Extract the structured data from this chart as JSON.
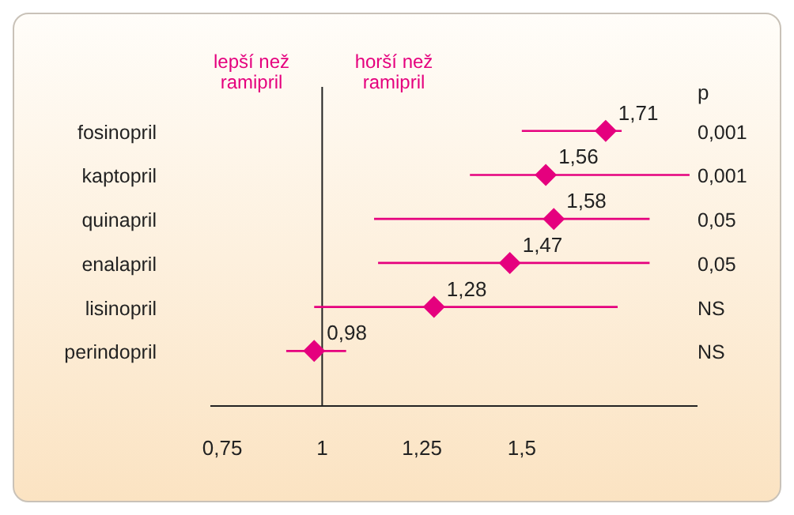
{
  "chart_data": {
    "type": "scatter",
    "categories": [
      "fosinopril",
      "kaptopril",
      "quinapril",
      "enalapril",
      "lisinopril",
      "perindopril"
    ],
    "values": [
      1.71,
      1.56,
      1.58,
      1.47,
      1.28,
      0.98
    ],
    "value_labels": [
      "1,71",
      "1,56",
      "1,58",
      "1,47",
      "1,28",
      "0,98"
    ],
    "errors": [
      [
        1.5,
        1.75
      ],
      [
        1.37,
        1.92
      ],
      [
        1.13,
        1.82
      ],
      [
        1.14,
        1.82
      ],
      [
        0.98,
        1.74
      ],
      [
        0.91,
        1.06
      ]
    ],
    "color": "#e5007e",
    "marker": "diamond",
    "orientation": "horizontal",
    "xlim": [
      0.72,
      1.94
    ],
    "xticks": [
      {
        "value": 0.75,
        "label": "0,75"
      },
      1,
      {
        "value": 1.25,
        "label": "1,25"
      },
      {
        "value": 1.5,
        "label": "1,5"
      }
    ],
    "ref_lines": [
      {
        "axis": "x",
        "value": 1,
        "color": "#222222"
      }
    ],
    "annotations": [
      "lepší než ramipril",
      "horší než ramipril",
      "p",
      "0,001",
      "0,001",
      "0,05",
      "0,05",
      "NS",
      "NS"
    ],
    "grid": false
  }
}
